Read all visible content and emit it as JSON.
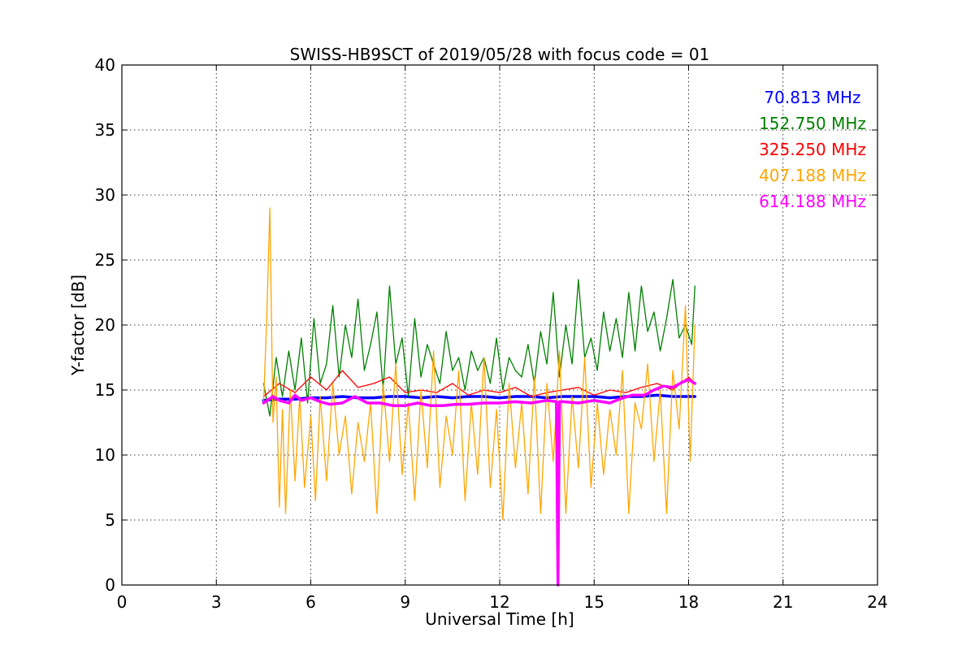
{
  "chart_data": {
    "type": "line",
    "title": "SWISS-HB9SCT of 2019/05/28 with focus code = 01",
    "xlabel": "Universal Time [h]",
    "ylabel": "Y-factor [dB]",
    "xlim": [
      0,
      24
    ],
    "ylim": [
      0,
      40
    ],
    "xticks": [
      0,
      3,
      6,
      9,
      12,
      15,
      18,
      21,
      24
    ],
    "yticks": [
      0,
      5,
      10,
      15,
      20,
      25,
      30,
      35,
      40
    ],
    "xtick_labels": [
      "0",
      "3",
      "6",
      "9",
      "12",
      "15",
      "18",
      "21",
      "24"
    ],
    "ytick_labels": [
      "0",
      "5",
      "10",
      "15",
      "20",
      "25",
      "30",
      "35",
      "40"
    ],
    "grid": true,
    "legend_placement": "top-right",
    "series": [
      {
        "name": "70.813 MHz",
        "color": "#0000ff",
        "stroke": 3.5,
        "x": [
          4.5,
          5.0,
          5.5,
          6.0,
          6.5,
          7.0,
          7.5,
          8.0,
          8.5,
          9.0,
          9.5,
          10.0,
          10.5,
          11.0,
          11.5,
          12.0,
          12.5,
          13.0,
          13.5,
          14.0,
          14.5,
          15.0,
          15.5,
          16.0,
          16.5,
          17.0,
          17.5,
          18.0,
          18.2
        ],
        "y": [
          14.2,
          14.3,
          14.3,
          14.4,
          14.4,
          14.5,
          14.4,
          14.4,
          14.5,
          14.5,
          14.4,
          14.5,
          14.4,
          14.5,
          14.5,
          14.4,
          14.5,
          14.5,
          14.4,
          14.5,
          14.5,
          14.5,
          14.4,
          14.5,
          14.5,
          14.6,
          14.5,
          14.5,
          14.5
        ]
      },
      {
        "name": "152.750 MHz",
        "color": "#008000",
        "stroke": 1.3,
        "x": [
          4.5,
          4.7,
          4.9,
          5.1,
          5.3,
          5.5,
          5.7,
          5.9,
          6.1,
          6.3,
          6.5,
          6.7,
          6.9,
          7.1,
          7.3,
          7.5,
          7.7,
          7.9,
          8.1,
          8.3,
          8.5,
          8.7,
          8.9,
          9.1,
          9.3,
          9.5,
          9.7,
          9.9,
          10.1,
          10.3,
          10.5,
          10.7,
          10.9,
          11.1,
          11.3,
          11.5,
          11.7,
          11.9,
          12.1,
          12.3,
          12.5,
          12.7,
          12.9,
          13.1,
          13.3,
          13.5,
          13.7,
          13.9,
          14.1,
          14.3,
          14.5,
          14.7,
          14.9,
          15.1,
          15.3,
          15.5,
          15.7,
          15.9,
          16.1,
          16.3,
          16.5,
          16.7,
          16.9,
          17.1,
          17.3,
          17.5,
          17.7,
          17.9,
          18.1,
          18.2
        ],
        "y": [
          15.5,
          13.0,
          17.5,
          14.5,
          18.0,
          15.0,
          19.0,
          14.0,
          20.5,
          15.5,
          17.0,
          21.5,
          16.0,
          20.0,
          17.5,
          22.0,
          16.5,
          18.5,
          21.0,
          15.0,
          23.0,
          17.0,
          19.0,
          14.5,
          20.5,
          16.0,
          18.5,
          17.0,
          15.5,
          19.5,
          16.5,
          17.5,
          15.0,
          18.0,
          16.5,
          17.5,
          15.5,
          19.0,
          15.0,
          17.5,
          16.5,
          16.0,
          18.5,
          15.5,
          19.5,
          17.0,
          22.5,
          16.0,
          20.0,
          17.0,
          23.5,
          17.5,
          19.0,
          16.5,
          21.0,
          18.0,
          20.5,
          17.5,
          22.5,
          18.0,
          23.0,
          19.5,
          21.0,
          18.0,
          20.5,
          23.5,
          19.0,
          20.0,
          18.5,
          23.0
        ]
      },
      {
        "name": "325.250 MHz",
        "color": "#ff0000",
        "stroke": 1.3,
        "x": [
          4.5,
          5.0,
          5.5,
          6.0,
          6.5,
          7.0,
          7.5,
          8.0,
          8.5,
          9.0,
          9.5,
          10.0,
          10.5,
          11.0,
          11.5,
          12.0,
          12.5,
          13.0,
          13.5,
          14.0,
          14.5,
          15.0,
          15.5,
          16.0,
          16.5,
          17.0,
          17.5,
          18.0,
          18.2
        ],
        "y": [
          14.5,
          15.5,
          14.8,
          16.0,
          15.0,
          16.5,
          15.2,
          15.5,
          16.0,
          14.8,
          15.0,
          14.8,
          15.5,
          14.6,
          15.0,
          14.8,
          15.2,
          14.5,
          14.8,
          15.0,
          15.2,
          14.6,
          15.0,
          14.8,
          15.2,
          15.5,
          15.0,
          16.0,
          15.5
        ]
      },
      {
        "name": "407.188 MHz",
        "color": "#ffa500",
        "stroke": 1.3,
        "x": [
          4.5,
          4.6,
          4.7,
          4.8,
          4.9,
          5.0,
          5.1,
          5.2,
          5.35,
          5.5,
          5.65,
          5.8,
          6.0,
          6.15,
          6.3,
          6.5,
          6.7,
          6.9,
          7.1,
          7.3,
          7.5,
          7.7,
          7.9,
          8.1,
          8.3,
          8.5,
          8.7,
          8.9,
          9.1,
          9.3,
          9.5,
          9.7,
          9.9,
          10.1,
          10.3,
          10.5,
          10.7,
          10.9,
          11.1,
          11.3,
          11.5,
          11.7,
          11.9,
          12.1,
          12.3,
          12.5,
          12.7,
          12.9,
          13.1,
          13.3,
          13.5,
          13.7,
          13.9,
          14.1,
          14.3,
          14.5,
          14.7,
          14.9,
          15.1,
          15.3,
          15.5,
          15.7,
          15.9,
          16.1,
          16.3,
          16.5,
          16.7,
          16.9,
          17.1,
          17.3,
          17.5,
          17.7,
          17.9,
          18.05,
          18.2
        ],
        "y": [
          14.0,
          20.5,
          29.0,
          12.5,
          16.0,
          6.0,
          13.5,
          5.5,
          15.0,
          8.0,
          14.5,
          7.5,
          13.0,
          6.5,
          14.5,
          8.0,
          15.5,
          10.0,
          13.0,
          7.0,
          12.5,
          9.5,
          14.0,
          5.5,
          15.5,
          9.5,
          17.0,
          8.5,
          14.0,
          6.5,
          15.0,
          9.0,
          18.0,
          7.5,
          13.0,
          10.0,
          16.5,
          6.5,
          14.0,
          8.5,
          17.5,
          7.5,
          13.5,
          5.0,
          15.5,
          9.0,
          14.0,
          7.0,
          16.0,
          5.5,
          15.5,
          9.5,
          18.0,
          5.5,
          14.5,
          9.0,
          17.5,
          7.5,
          14.0,
          8.5,
          13.5,
          10.0,
          16.5,
          5.5,
          14.0,
          12.0,
          17.0,
          9.5,
          15.0,
          5.5,
          16.5,
          12.0,
          21.5,
          9.5,
          20.0
        ]
      },
      {
        "name": "614.188 MHz",
        "color": "#ff00ff",
        "stroke": 3.5,
        "x": [
          4.5,
          4.8,
          5.0,
          5.3,
          5.5,
          5.7,
          6.0,
          6.3,
          6.6,
          7.0,
          7.4,
          7.8,
          8.2,
          8.6,
          9.0,
          9.4,
          9.8,
          10.2,
          10.6,
          11.0,
          11.5,
          12.0,
          12.5,
          13.0,
          13.5,
          13.8,
          13.85,
          13.9,
          14.0,
          14.5,
          15.0,
          15.5,
          15.8,
          16.2,
          16.6,
          16.9,
          17.2,
          17.5,
          17.8,
          18.0,
          18.2
        ],
        "y": [
          14.0,
          14.5,
          14.2,
          14.0,
          14.6,
          14.2,
          14.4,
          14.1,
          13.9,
          14.0,
          14.5,
          14.0,
          14.0,
          13.8,
          13.8,
          14.0,
          13.8,
          13.8,
          13.9,
          13.9,
          14.0,
          14.0,
          14.1,
          14.0,
          14.2,
          14.1,
          0.0,
          14.1,
          14.1,
          14.0,
          14.2,
          14.0,
          14.3,
          14.6,
          14.6,
          15.0,
          15.3,
          15.2,
          15.6,
          15.8,
          15.5
        ]
      }
    ]
  }
}
